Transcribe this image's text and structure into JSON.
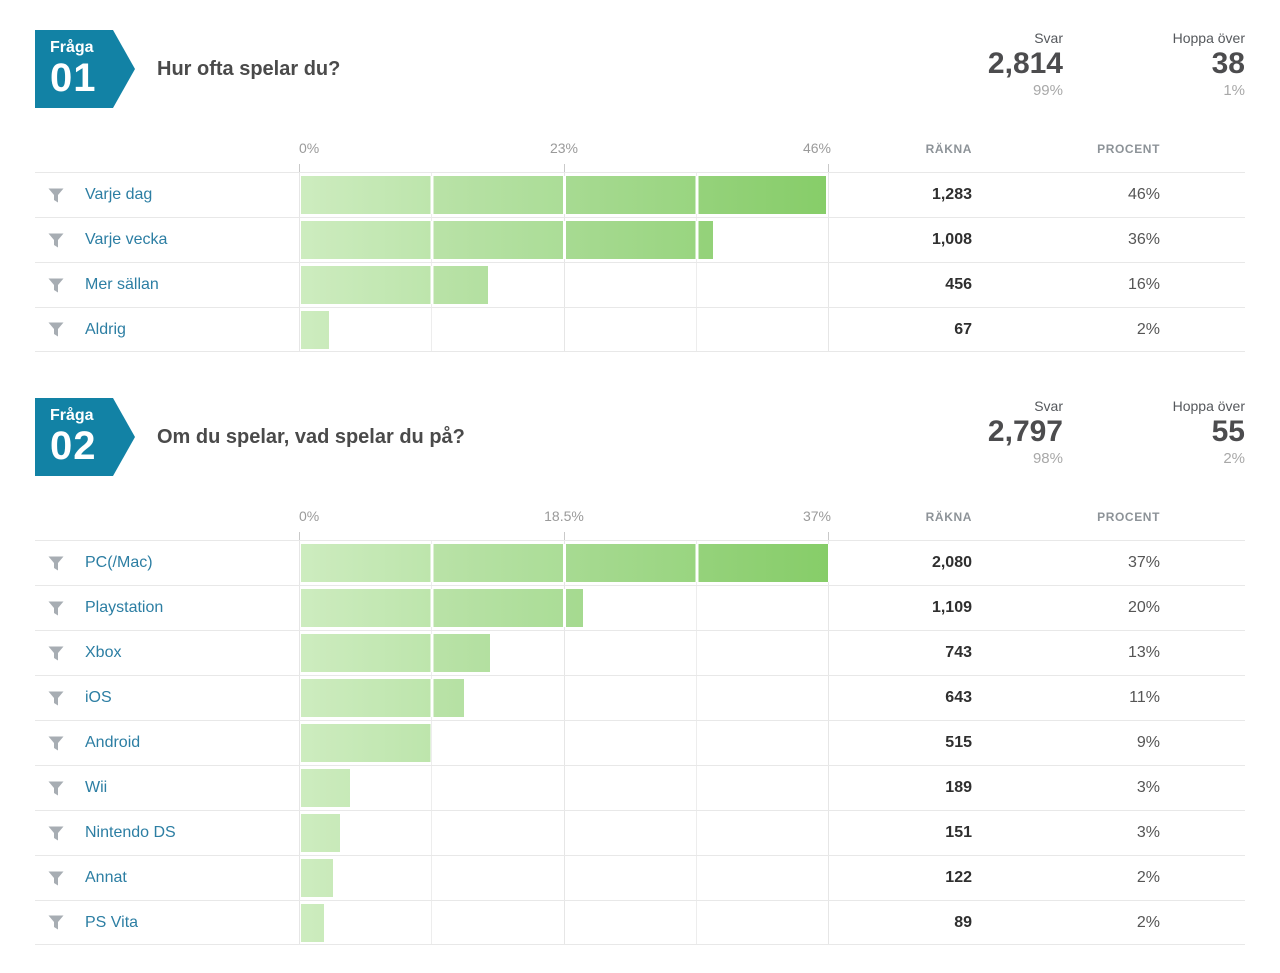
{
  "columns": {
    "count": "RÄKNA",
    "percent": "PROCENT"
  },
  "stats_labels": {
    "answered": "Svar",
    "skipped": "Hoppa över"
  },
  "icons": {
    "filter": "funnel-filter-icon"
  },
  "colors": {
    "badge_teal": "#1282a5",
    "link_blue": "#2c7ea3",
    "bar_green_light": "#cdecbf",
    "bar_green_dark": "#86cd68",
    "gridline": "#e6e6e6"
  },
  "questions": [
    {
      "badge_label": "Fråga",
      "number": "01",
      "title": "Hur ofta spelar du?",
      "answered": {
        "value": "2,814",
        "pct": "99%"
      },
      "skipped": {
        "value": "38",
        "pct": "1%"
      },
      "axis": {
        "min": "0%",
        "mid": "23%",
        "max": "46%",
        "scale_max": 46
      },
      "rows": [
        {
          "label": "Varje dag",
          "count": "1,283",
          "pct_display": "46%",
          "pct_value": 45.6
        },
        {
          "label": "Varje vecka",
          "count": "1,008",
          "pct_display": "36%",
          "pct_value": 35.8
        },
        {
          "label": "Mer sällan",
          "count": "456",
          "pct_display": "16%",
          "pct_value": 16.2
        },
        {
          "label": "Aldrig",
          "count": "67",
          "pct_display": "2%",
          "pct_value": 2.4
        }
      ]
    },
    {
      "badge_label": "Fråga",
      "number": "02",
      "title": "Om du spelar, vad spelar du på?",
      "answered": {
        "value": "2,797",
        "pct": "98%"
      },
      "skipped": {
        "value": "55",
        "pct": "2%"
      },
      "axis": {
        "min": "0%",
        "mid": "18.5%",
        "max": "37%",
        "scale_max": 37
      },
      "rows": [
        {
          "label": "PC(/Mac)",
          "count": "2,080",
          "pct_display": "37%",
          "pct_value": 36.9
        },
        {
          "label": "Playstation",
          "count": "1,109",
          "pct_display": "20%",
          "pct_value": 19.7
        },
        {
          "label": "Xbox",
          "count": "743",
          "pct_display": "13%",
          "pct_value": 13.2
        },
        {
          "label": "iOS",
          "count": "643",
          "pct_display": "11%",
          "pct_value": 11.4
        },
        {
          "label": "Android",
          "count": "515",
          "pct_display": "9%",
          "pct_value": 9.1
        },
        {
          "label": "Wii",
          "count": "189",
          "pct_display": "3%",
          "pct_value": 3.4
        },
        {
          "label": "Nintendo DS",
          "count": "151",
          "pct_display": "3%",
          "pct_value": 2.7
        },
        {
          "label": "Annat",
          "count": "122",
          "pct_display": "2%",
          "pct_value": 2.2
        },
        {
          "label": "PS Vita",
          "count": "89",
          "pct_display": "2%",
          "pct_value": 1.6
        }
      ]
    }
  ],
  "chart_data": [
    {
      "type": "bar",
      "title": "Hur ofta spelar du?",
      "categories": [
        "Varje dag",
        "Varje vecka",
        "Mer sällan",
        "Aldrig"
      ],
      "values": [
        1283,
        1008,
        456,
        67
      ],
      "percents": [
        46,
        36,
        16,
        2
      ],
      "xlabel": "",
      "ylabel": "",
      "xlim": [
        0,
        46
      ],
      "x_ticks": [
        "0%",
        "23%",
        "46%"
      ],
      "grid": true,
      "orientation": "horizontal"
    },
    {
      "type": "bar",
      "title": "Om du spelar, vad spelar du på?",
      "categories": [
        "PC(/Mac)",
        "Playstation",
        "Xbox",
        "iOS",
        "Android",
        "Wii",
        "Nintendo DS",
        "Annat",
        "PS Vita"
      ],
      "values": [
        2080,
        1109,
        743,
        643,
        515,
        189,
        151,
        122,
        89
      ],
      "percents": [
        37,
        20,
        13,
        11,
        9,
        3,
        3,
        2,
        2
      ],
      "xlabel": "",
      "ylabel": "",
      "xlim": [
        0,
        37
      ],
      "x_ticks": [
        "0%",
        "18.5%",
        "37%"
      ],
      "grid": true,
      "orientation": "horizontal"
    }
  ]
}
